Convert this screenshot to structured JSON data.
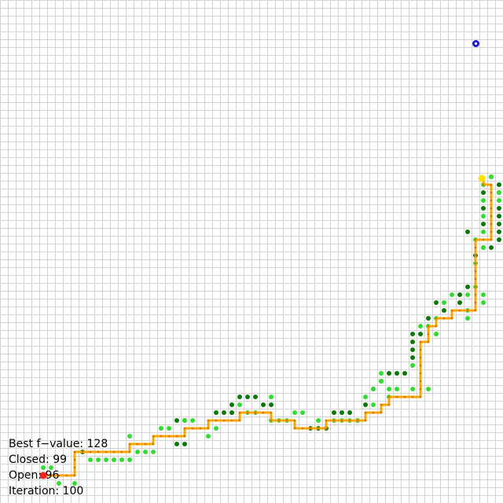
{
  "grid": {
    "cols": 64,
    "rows": 64,
    "line_color": "#d3d3d3"
  },
  "colors": {
    "path": "#ffa500",
    "path_dot": "#c47800",
    "closed": "#0b7a0b",
    "open": "#33dd33",
    "start": "#ff2020",
    "current": "#ffe000",
    "goal": "#1a1adf"
  },
  "markers": {
    "start": {
      "col": 5,
      "row": 60,
      "icon": "start-marker-icon"
    },
    "current": {
      "col": 61,
      "row": 22,
      "icon": "current-node-icon"
    },
    "goal": {
      "col": 60,
      "row": 5,
      "icon": "goal-marker-icon"
    }
  },
  "path": [
    [
      5,
      60
    ],
    [
      6,
      60
    ],
    [
      7,
      60
    ],
    [
      8,
      60
    ],
    [
      9,
      60
    ],
    [
      9,
      59
    ],
    [
      9,
      58
    ],
    [
      9,
      57
    ],
    [
      10,
      57
    ],
    [
      11,
      57
    ],
    [
      12,
      57
    ],
    [
      13,
      57
    ],
    [
      14,
      57
    ],
    [
      15,
      57
    ],
    [
      16,
      57
    ],
    [
      16,
      56
    ],
    [
      17,
      56
    ],
    [
      18,
      56
    ],
    [
      19,
      56
    ],
    [
      19,
      55
    ],
    [
      20,
      55
    ],
    [
      21,
      55
    ],
    [
      22,
      55
    ],
    [
      23,
      55
    ],
    [
      23,
      54
    ],
    [
      24,
      54
    ],
    [
      25,
      54
    ],
    [
      26,
      54
    ],
    [
      26,
      53
    ],
    [
      27,
      53
    ],
    [
      28,
      53
    ],
    [
      29,
      53
    ],
    [
      30,
      53
    ],
    [
      30,
      52
    ],
    [
      31,
      52
    ],
    [
      32,
      52
    ],
    [
      33,
      52
    ],
    [
      34,
      52
    ],
    [
      34,
      53
    ],
    [
      35,
      53
    ],
    [
      36,
      53
    ],
    [
      37,
      53
    ],
    [
      37,
      54
    ],
    [
      38,
      54
    ],
    [
      39,
      54
    ],
    [
      40,
      54
    ],
    [
      41,
      54
    ],
    [
      41,
      53
    ],
    [
      42,
      53
    ],
    [
      43,
      53
    ],
    [
      44,
      53
    ],
    [
      45,
      53
    ],
    [
      46,
      53
    ],
    [
      46,
      52
    ],
    [
      47,
      52
    ],
    [
      48,
      52
    ],
    [
      48,
      51
    ],
    [
      49,
      51
    ],
    [
      49,
      50
    ],
    [
      50,
      50
    ],
    [
      51,
      50
    ],
    [
      52,
      50
    ],
    [
      53,
      50
    ],
    [
      53,
      49
    ],
    [
      53,
      48
    ],
    [
      53,
      47
    ],
    [
      53,
      46
    ],
    [
      53,
      45
    ],
    [
      53,
      44
    ],
    [
      53,
      43
    ],
    [
      54,
      43
    ],
    [
      54,
      42
    ],
    [
      54,
      41
    ],
    [
      55,
      41
    ],
    [
      55,
      40
    ],
    [
      56,
      40
    ],
    [
      57,
      40
    ],
    [
      57,
      39
    ],
    [
      58,
      39
    ],
    [
      59,
      39
    ],
    [
      60,
      39
    ],
    [
      60,
      38
    ],
    [
      60,
      37
    ],
    [
      60,
      36
    ],
    [
      60,
      35
    ],
    [
      60,
      34
    ],
    [
      60,
      33
    ],
    [
      60,
      32
    ],
    [
      60,
      31
    ],
    [
      60,
      30
    ],
    [
      61,
      30
    ],
    [
      62,
      30
    ],
    [
      62,
      29
    ],
    [
      62,
      28
    ],
    [
      62,
      27
    ],
    [
      62,
      26
    ],
    [
      62,
      25
    ],
    [
      62,
      24
    ],
    [
      62,
      23
    ],
    [
      61,
      23
    ],
    [
      61,
      22
    ]
  ],
  "closed_nodes": [
    [
      10,
      57
    ],
    [
      22,
      53
    ],
    [
      23,
      53
    ],
    [
      22,
      56
    ],
    [
      23,
      56
    ],
    [
      27,
      52
    ],
    [
      28,
      52
    ],
    [
      29,
      52
    ],
    [
      29,
      51
    ],
    [
      30,
      50
    ],
    [
      31,
      50
    ],
    [
      32,
      50
    ],
    [
      33,
      51
    ],
    [
      34,
      51
    ],
    [
      39,
      54
    ],
    [
      40,
      54
    ],
    [
      41,
      54
    ],
    [
      42,
      52
    ],
    [
      43,
      52
    ],
    [
      44,
      52
    ],
    [
      45,
      53
    ],
    [
      46,
      51
    ],
    [
      47,
      49
    ],
    [
      48,
      48
    ],
    [
      49,
      47
    ],
    [
      50,
      47
    ],
    [
      51,
      47
    ],
    [
      52,
      42
    ],
    [
      52,
      43
    ],
    [
      52,
      44
    ],
    [
      52,
      45
    ],
    [
      53,
      42
    ],
    [
      54,
      40
    ],
    [
      55,
      38
    ],
    [
      56,
      39
    ],
    [
      58,
      37
    ],
    [
      59,
      36
    ],
    [
      60,
      32
    ],
    [
      61,
      31
    ],
    [
      62,
      31
    ],
    [
      63,
      30
    ],
    [
      63,
      29
    ],
    [
      63,
      28
    ],
    [
      63,
      27
    ],
    [
      63,
      26
    ],
    [
      61,
      28
    ],
    [
      61,
      26
    ],
    [
      63,
      24
    ],
    [
      61,
      24
    ],
    [
      63,
      23
    ],
    [
      62,
      22
    ],
    [
      59,
      29
    ],
    [
      58,
      38
    ]
  ],
  "open_nodes": [
    [
      5,
      59
    ],
    [
      6,
      59
    ],
    [
      11,
      58
    ],
    [
      12,
      58
    ],
    [
      13,
      58
    ],
    [
      14,
      58
    ],
    [
      16,
      58
    ],
    [
      16,
      55
    ],
    [
      18,
      57
    ],
    [
      19,
      57
    ],
    [
      20,
      54
    ],
    [
      21,
      54
    ],
    [
      23,
      53
    ],
    [
      24,
      53
    ],
    [
      26,
      55
    ],
    [
      27,
      54
    ],
    [
      30,
      51
    ],
    [
      31,
      52
    ],
    [
      32,
      52
    ],
    [
      34,
      50
    ],
    [
      34,
      53
    ],
    [
      35,
      53
    ],
    [
      36,
      53
    ],
    [
      37,
      52
    ],
    [
      38,
      52
    ],
    [
      40,
      53
    ],
    [
      42,
      53
    ],
    [
      43,
      53
    ],
    [
      44,
      53
    ],
    [
      45,
      53
    ],
    [
      46,
      50
    ],
    [
      47,
      49
    ],
    [
      48,
      48
    ],
    [
      49,
      49
    ],
    [
      50,
      49
    ],
    [
      52,
      49
    ],
    [
      54,
      49
    ],
    [
      48,
      47
    ],
    [
      54,
      41
    ],
    [
      55,
      42
    ],
    [
      55,
      40
    ],
    [
      56,
      38
    ],
    [
      57,
      37
    ],
    [
      59,
      39
    ],
    [
      59,
      40
    ],
    [
      61,
      37
    ],
    [
      61,
      38
    ],
    [
      59,
      37
    ],
    [
      60,
      36
    ],
    [
      60,
      33
    ],
    [
      61,
      31
    ],
    [
      60,
      30
    ],
    [
      61,
      29
    ],
    [
      61,
      27
    ],
    [
      61,
      25
    ],
    [
      61,
      23
    ],
    [
      62,
      22
    ],
    [
      63,
      24
    ],
    [
      63,
      25
    ],
    [
      55,
      42
    ],
    [
      53,
      41
    ],
    [
      52,
      46
    ],
    [
      49,
      50
    ],
    [
      47,
      51
    ],
    [
      15,
      58
    ],
    [
      17,
      57
    ],
    [
      9,
      61
    ],
    [
      7,
      61
    ]
  ],
  "hud": {
    "best_f": "Best f−value: 128",
    "closed": "Closed: 99",
    "open": "Open: 96",
    "iteration": "Iteration: 100"
  }
}
